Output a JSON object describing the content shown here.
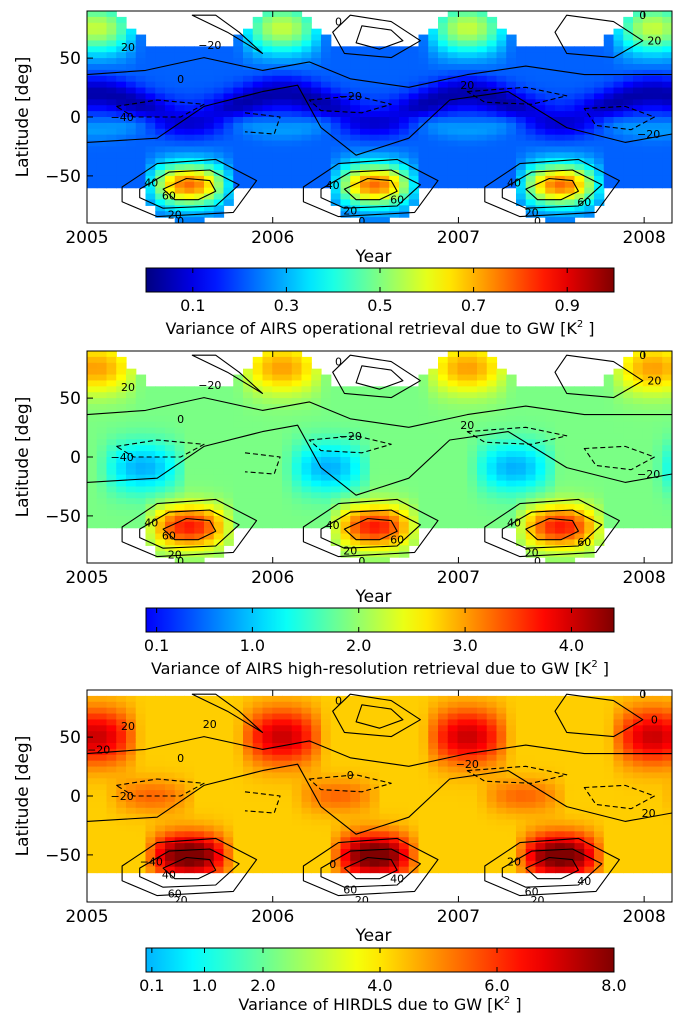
{
  "chart_data": [
    {
      "type": "heatmap",
      "panel": "AIRS operational",
      "xlabel": "Year",
      "ylabel": "Latitude [deg]",
      "x_ticks": [
        "2005",
        "2006",
        "2007",
        "2008"
      ],
      "x_tick_values": [
        2005,
        2006,
        2007,
        2008
      ],
      "y_ticks": [
        "50",
        "0",
        "−50"
      ],
      "y_tick_values": [
        50,
        0,
        -50
      ],
      "xlim": [
        2005,
        2008.15
      ],
      "ylim": [
        -90,
        90
      ],
      "colorbar_label": "Variance of AIRS operational retrieval due to GW [K",
      "colorbar_label_sup": "2",
      "colorbar_label_end": " ]",
      "colorbar_ticks": [
        "0.1",
        "0.3",
        "0.5",
        "0.7",
        "0.9"
      ],
      "colorbar_tick_values": [
        0.1,
        0.3,
        0.5,
        0.7,
        0.9
      ],
      "colorbar_range": [
        0.0,
        1.0
      ],
      "colormap": "jet",
      "contour_labels": [
        "0",
        "20",
        "−20",
        "−40",
        "40",
        "60",
        "20",
        "0",
        "40",
        "60",
        "20",
        "0",
        "0",
        "−20",
        "20",
        "40",
        "60",
        "20",
        "0",
        "0",
        "20",
        "−20"
      ]
    },
    {
      "type": "heatmap",
      "panel": "AIRS high-resolution",
      "xlabel": "Year",
      "ylabel": "Latitude [deg]",
      "x_ticks": [
        "2005",
        "2006",
        "2007",
        "2008"
      ],
      "x_tick_values": [
        2005,
        2006,
        2007,
        2008
      ],
      "y_ticks": [
        "50",
        "0",
        "−50"
      ],
      "y_tick_values": [
        50,
        0,
        -50
      ],
      "xlim": [
        2005,
        2008.15
      ],
      "ylim": [
        -90,
        90
      ],
      "colorbar_label": "Variance of AIRS high-resolution retrieval due to GW [K",
      "colorbar_label_sup": "2",
      "colorbar_label_end": " ]",
      "colorbar_ticks": [
        "0.1",
        "1.0",
        "2.0",
        "3.0",
        "4.0"
      ],
      "colorbar_tick_values": [
        0.1,
        1.0,
        2.0,
        3.0,
        4.0
      ],
      "colorbar_range": [
        0.0,
        4.4
      ],
      "colormap": "jet",
      "contour_labels": [
        "0",
        "20",
        "−20",
        "−40",
        "40",
        "60",
        "20",
        "0",
        "40",
        "60",
        "20",
        "0",
        "0",
        "−20",
        "20",
        "40",
        "60",
        "20",
        "0",
        "0",
        "20",
        "−20"
      ]
    },
    {
      "type": "heatmap",
      "panel": "HIRDLS",
      "xlabel": "Year",
      "ylabel": "Latitude [deg]",
      "x_ticks": [
        "2005",
        "2006",
        "2007",
        "2008"
      ],
      "x_tick_values": [
        2005,
        2006,
        2007,
        2008
      ],
      "y_ticks": [
        "50",
        "0",
        "−50"
      ],
      "y_tick_values": [
        50,
        0,
        -50
      ],
      "xlim": [
        2005,
        2008.15
      ],
      "ylim": [
        -90,
        90
      ],
      "colorbar_label": "Variance of HIRDLS due to GW [K",
      "colorbar_label_sup": "2",
      "colorbar_label_end": " ]",
      "colorbar_ticks": [
        "0.1",
        "1.0",
        "2.0",
        "4.0",
        "6.0",
        "8.0"
      ],
      "colorbar_tick_values": [
        0.1,
        1.0,
        2.0,
        4.0,
        6.0,
        8.0
      ],
      "colorbar_range": [
        0.0,
        8.0
      ],
      "colormap": "jet",
      "contour_labels": [
        "0",
        "20",
        "20",
        "−20",
        "−40",
        "40",
        "60",
        "20",
        "0",
        "40",
        "60",
        "20",
        "0",
        "0",
        "−20",
        "20",
        "40",
        "60",
        "20",
        "0",
        "0",
        "20",
        "−20"
      ]
    }
  ]
}
